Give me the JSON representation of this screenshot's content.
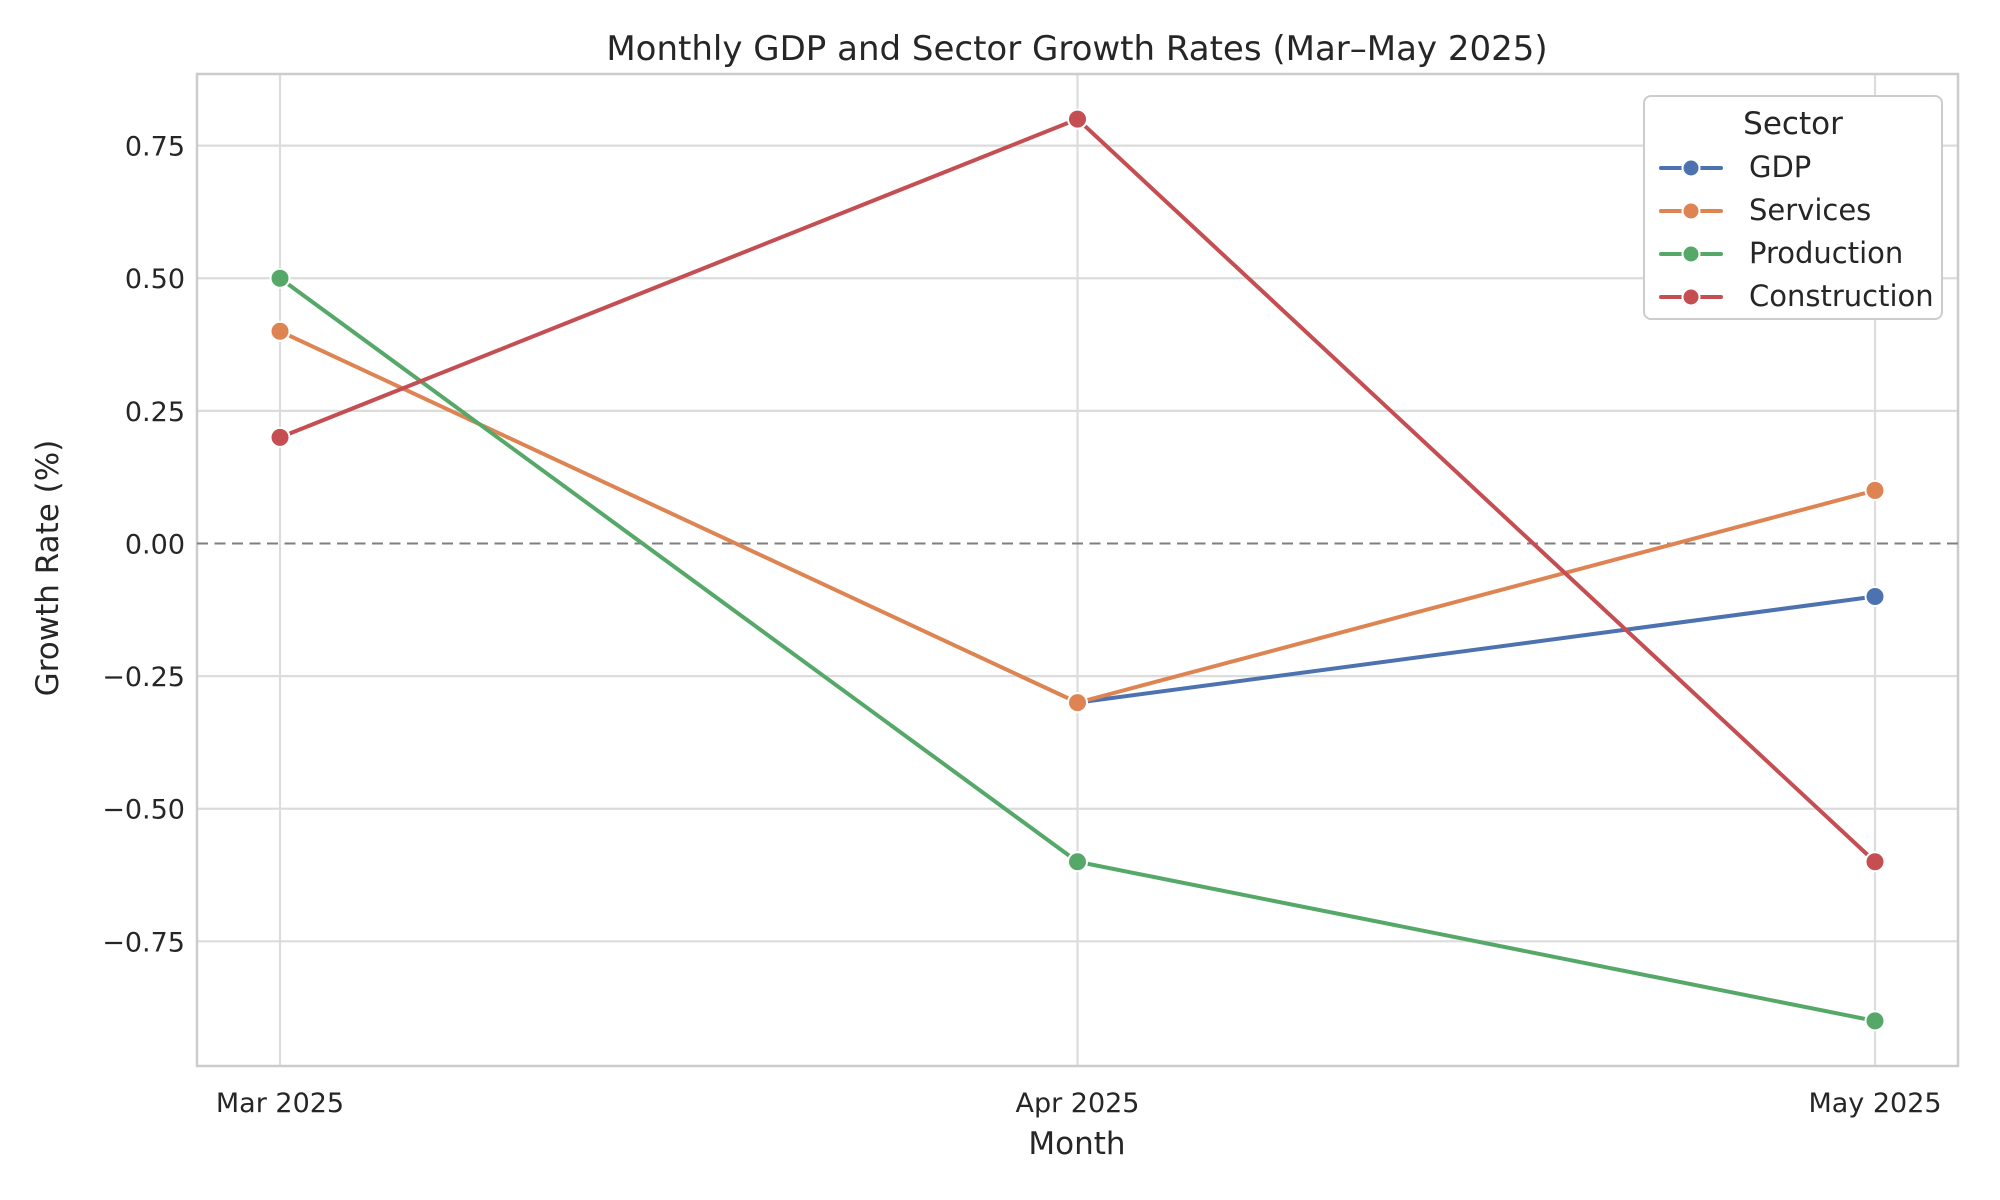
{
  "chart_data": {
    "type": "line",
    "title": "Monthly GDP and Sector Growth Rates (Mar–May 2025)",
    "xlabel": "Month",
    "ylabel": "Growth Rate (%)",
    "categories": [
      "Mar 2025",
      "Apr 2025",
      "May 2025"
    ],
    "series": [
      {
        "name": "GDP",
        "color": "#4C72B0",
        "values": [
          null,
          -0.3,
          -0.1
        ]
      },
      {
        "name": "Services",
        "color": "#DD8452",
        "values": [
          0.4,
          -0.3,
          0.1
        ]
      },
      {
        "name": "Production",
        "color": "#55A868",
        "values": [
          0.5,
          -0.6,
          -0.9
        ]
      },
      {
        "name": "Construction",
        "color": "#C44E52",
        "values": [
          0.2,
          0.8,
          -0.6
        ]
      }
    ],
    "y_ticks": [
      0.75,
      0.5,
      0.25,
      0,
      -0.25,
      -0.5,
      -0.75
    ],
    "y_tick_labels": [
      "0.75",
      "0.50",
      "0.25",
      "0.00",
      "−0.25",
      "−0.50",
      "−0.75"
    ],
    "ylim": [
      -0.985,
      0.885
    ],
    "grid": true,
    "zero_line": {
      "value": 0,
      "style": "dashed",
      "color": "#7f7f7f"
    },
    "legend": {
      "title": "Sector",
      "position": "upper right"
    },
    "style": {
      "grid_color": "#dcdcdc",
      "spine_color": "#cccccc",
      "text_color": "#262626",
      "background": "#ffffff",
      "marker": "circle"
    }
  }
}
